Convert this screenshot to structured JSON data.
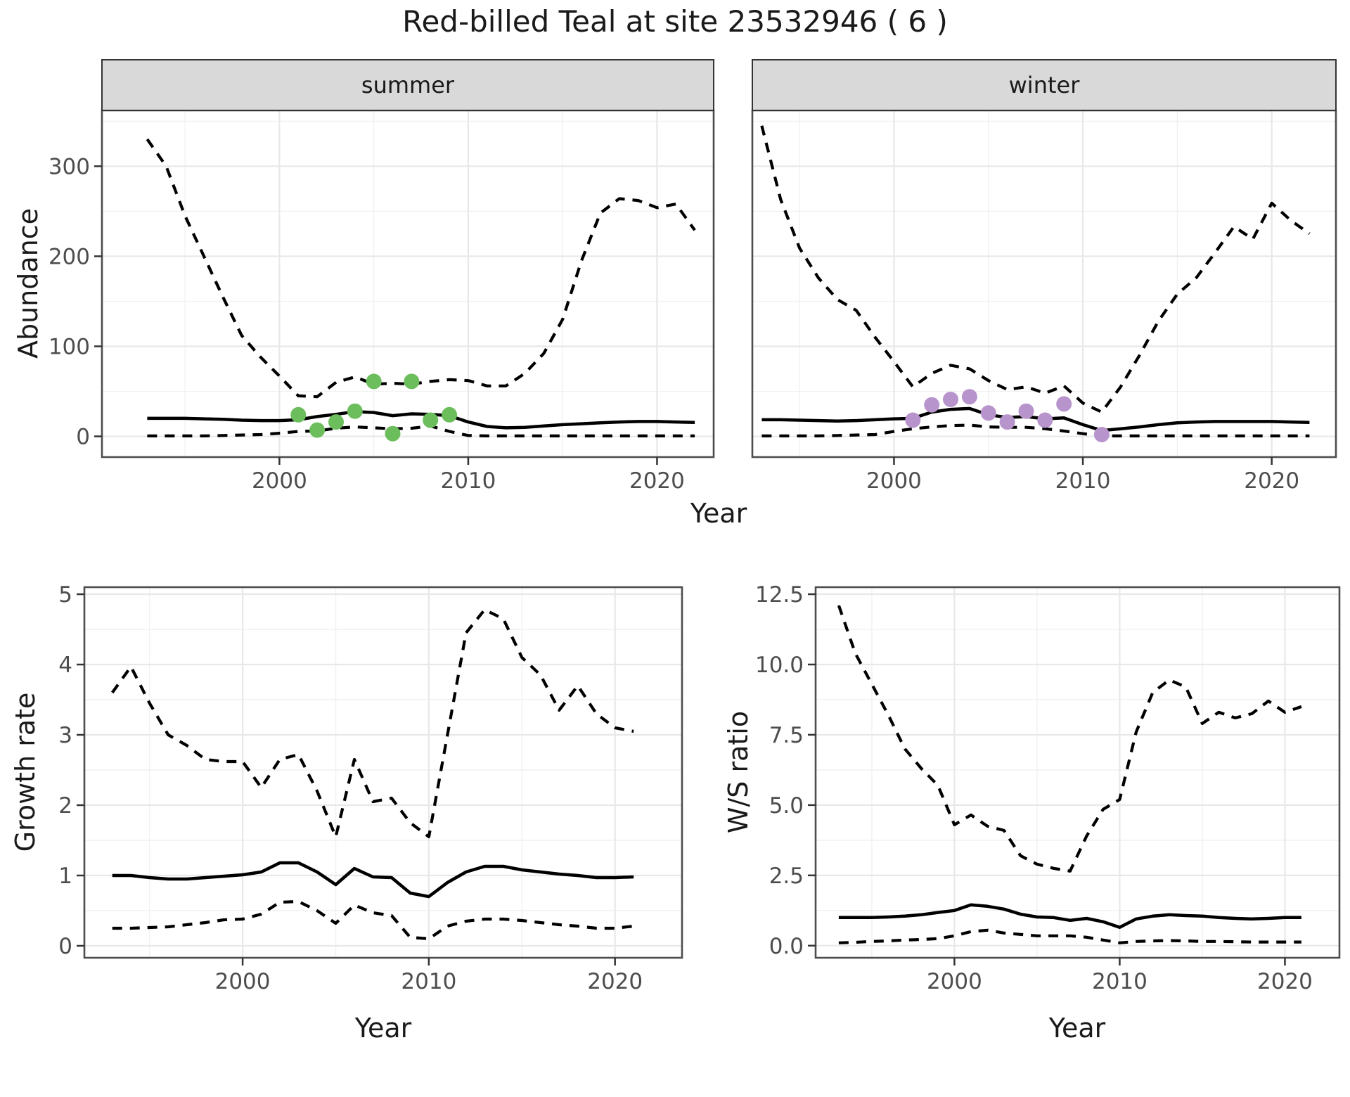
{
  "title": "Red-billed Teal at site 23532946 ( 6 )",
  "styles": {
    "line_color": "#000000",
    "summer_point_color": "#6CBE5C",
    "winter_point_color": "#B894CC",
    "strip_fill": "#D9D9D9",
    "strip_border": "#333333",
    "panel_border": "#4D4D4D",
    "grid_major": "#E8E8E8",
    "grid_minor": "#F1F1F1",
    "tick_color": "#333333",
    "tick_label_color": "#4D4D4D"
  },
  "chart_data": [
    {
      "id": "summer",
      "type": "line",
      "facet_label": "summer",
      "xlabel": "Year",
      "ylabel": "Abundance",
      "xlim": [
        1990.6,
        2023.0
      ],
      "ylim": [
        -23,
        362
      ],
      "x_major_ticks": [
        2000,
        2010,
        2020
      ],
      "x_tick_labels": [
        "2000",
        "2010",
        "2020"
      ],
      "x_minor_ticks": [
        1995,
        2005,
        2015
      ],
      "y_major_ticks": [
        0,
        100,
        200,
        300
      ],
      "y_tick_labels": [
        "0",
        "100",
        "200",
        "300"
      ],
      "y_minor_ticks": [
        50,
        150,
        250,
        350
      ],
      "years": [
        1993,
        1994,
        1995,
        1996,
        1997,
        1998,
        1999,
        2000,
        2001,
        2002,
        2003,
        2004,
        2005,
        2006,
        2007,
        2008,
        2009,
        2010,
        2011,
        2012,
        2013,
        2014,
        2015,
        2016,
        2017,
        2018,
        2019,
        2020,
        2021,
        2022
      ],
      "series": [
        {
          "name": "upper_95ci",
          "style": "dashed",
          "values": [
            330,
            300,
            245,
            200,
            155,
            112,
            88,
            67,
            45,
            44,
            60,
            66,
            58,
            59,
            58,
            61,
            63,
            62,
            56,
            56,
            70,
            92,
            130,
            195,
            248,
            264,
            262,
            254,
            258,
            229
          ]
        },
        {
          "name": "median",
          "style": "solid",
          "values": [
            20,
            20,
            20,
            19.5,
            19,
            18,
            17.5,
            17.5,
            18.5,
            22,
            24.5,
            27.5,
            26.5,
            23,
            25,
            24.5,
            23,
            16,
            11,
            9.5,
            10,
            11.5,
            13,
            14,
            15,
            16,
            16.5,
            16.5,
            16,
            15.5
          ]
        },
        {
          "name": "lower_95ci",
          "style": "dashed",
          "values": [
            0.5,
            0.5,
            0.5,
            0.5,
            1,
            1.5,
            2,
            3.5,
            5.5,
            6,
            9,
            10.5,
            9.5,
            8.5,
            9,
            11.5,
            5.5,
            1,
            0.5,
            0.5,
            0.5,
            0.5,
            0.5,
            0.5,
            0.5,
            0.5,
            0.5,
            0.5,
            0.5,
            0.5
          ]
        }
      ],
      "observations": {
        "name": "observed_counts",
        "color": "#6CBE5C",
        "points": [
          [
            2001,
            24
          ],
          [
            2002,
            7
          ],
          [
            2003,
            16
          ],
          [
            2004,
            28
          ],
          [
            2005,
            61
          ],
          [
            2006,
            3
          ],
          [
            2007,
            61
          ],
          [
            2008,
            18
          ],
          [
            2009,
            24
          ]
        ]
      }
    },
    {
      "id": "winter",
      "type": "line",
      "facet_label": "winter",
      "xlabel": "Year",
      "ylabel": "Abundance",
      "xlim": [
        1992.5,
        2023.4
      ],
      "ylim": [
        -23,
        362
      ],
      "x_major_ticks": [
        2000,
        2010,
        2020
      ],
      "x_tick_labels": [
        "2000",
        "2010",
        "2020"
      ],
      "x_minor_ticks": [
        1995,
        2005,
        2015
      ],
      "y_major_ticks": [
        0,
        100,
        200,
        300
      ],
      "y_tick_labels": [
        "0",
        "100",
        "200",
        "300"
      ],
      "y_minor_ticks": [
        50,
        150,
        250,
        350
      ],
      "years": [
        1993,
        1994,
        1995,
        1996,
        1997,
        1998,
        1999,
        2000,
        2001,
        2002,
        2003,
        2004,
        2005,
        2006,
        2007,
        2008,
        2009,
        2010,
        2011,
        2012,
        2013,
        2014,
        2015,
        2016,
        2017,
        2018,
        2019,
        2020,
        2021,
        2022
      ],
      "series": [
        {
          "name": "upper_95ci",
          "style": "dashed",
          "values": [
            345,
            263,
            209,
            176,
            152,
            140,
            110,
            83,
            55,
            70,
            79,
            75,
            62,
            52,
            55,
            48,
            56,
            37,
            27,
            55,
            90,
            128,
            158,
            176,
            204,
            233,
            219,
            259,
            240,
            225
          ]
        },
        {
          "name": "median",
          "style": "solid",
          "values": [
            18.5,
            18.5,
            18,
            17.5,
            17,
            17.5,
            18.5,
            19.5,
            20,
            27,
            30,
            31,
            24,
            21,
            22,
            19.5,
            20.5,
            13,
            6.5,
            8.5,
            10.5,
            13,
            15,
            16,
            16.5,
            16.5,
            16.5,
            16.5,
            16,
            15.5
          ]
        },
        {
          "name": "lower_95ci",
          "style": "dashed",
          "values": [
            0.5,
            0.5,
            0.5,
            0.5,
            1,
            1.5,
            2,
            5.5,
            8.5,
            10.5,
            12,
            12.5,
            10.5,
            10,
            10,
            8.5,
            6,
            3,
            0.5,
            0.5,
            0.5,
            0.5,
            0.5,
            0.5,
            0.5,
            0.5,
            0.5,
            0.5,
            0.5,
            0.5
          ]
        }
      ],
      "observations": {
        "name": "observed_counts",
        "color": "#B894CC",
        "points": [
          [
            2001,
            18
          ],
          [
            2002,
            35
          ],
          [
            2003,
            41
          ],
          [
            2004,
            44
          ],
          [
            2005,
            26
          ],
          [
            2006,
            16
          ],
          [
            2007,
            28
          ],
          [
            2008,
            18
          ],
          [
            2009,
            36
          ],
          [
            2011,
            2
          ]
        ]
      }
    },
    {
      "id": "growth_rate",
      "type": "line",
      "facet_label": "",
      "xlabel": "Year",
      "ylabel": "Growth rate",
      "xlim": [
        1991.5,
        2023.6
      ],
      "ylim": [
        -0.17,
        5.1
      ],
      "x_major_ticks": [
        2000,
        2010,
        2020
      ],
      "x_tick_labels": [
        "2000",
        "2010",
        "2020"
      ],
      "x_minor_ticks": [
        1995,
        2005,
        2015
      ],
      "y_major_ticks": [
        0,
        1,
        2,
        3,
        4,
        5
      ],
      "y_tick_labels": [
        "0",
        "1",
        "2",
        "3",
        "4",
        "5"
      ],
      "y_minor_ticks": [
        0.5,
        1.5,
        2.5,
        3.5,
        4.5
      ],
      "years": [
        1993,
        1994,
        1995,
        1996,
        1997,
        1998,
        1999,
        2000,
        2001,
        2002,
        2003,
        2004,
        2005,
        2006,
        2007,
        2008,
        2009,
        2010,
        2011,
        2012,
        2013,
        2014,
        2015,
        2016,
        2017,
        2018,
        2019,
        2020,
        2021
      ],
      "series": [
        {
          "name": "upper_95ci",
          "style": "dashed",
          "values": [
            3.6,
            3.97,
            3.45,
            3.0,
            2.85,
            2.65,
            2.62,
            2.62,
            2.25,
            2.65,
            2.72,
            2.2,
            1.55,
            2.65,
            2.05,
            2.1,
            1.75,
            1.55,
            3.0,
            4.45,
            4.78,
            4.65,
            4.1,
            3.85,
            3.35,
            3.7,
            3.3,
            3.1,
            3.05
          ]
        },
        {
          "name": "median",
          "style": "solid",
          "values": [
            1.0,
            1.0,
            0.97,
            0.95,
            0.95,
            0.97,
            0.99,
            1.01,
            1.05,
            1.18,
            1.18,
            1.05,
            0.87,
            1.1,
            0.98,
            0.97,
            0.75,
            0.7,
            0.9,
            1.05,
            1.13,
            1.13,
            1.08,
            1.05,
            1.02,
            1.0,
            0.97,
            0.97,
            0.98
          ]
        },
        {
          "name": "lower_95ci",
          "style": "dashed",
          "values": [
            0.25,
            0.25,
            0.26,
            0.27,
            0.3,
            0.33,
            0.37,
            0.38,
            0.45,
            0.62,
            0.63,
            0.5,
            0.32,
            0.58,
            0.47,
            0.43,
            0.12,
            0.1,
            0.28,
            0.35,
            0.38,
            0.38,
            0.36,
            0.33,
            0.3,
            0.28,
            0.25,
            0.25,
            0.28
          ]
        }
      ]
    },
    {
      "id": "ws_ratio",
      "type": "line",
      "facet_label": "",
      "xlabel": "Year",
      "ylabel": "W/S ratio",
      "xlim": [
        1991.6,
        2023.3
      ],
      "ylim": [
        -0.43,
        12.75
      ],
      "x_major_ticks": [
        2000,
        2010,
        2020
      ],
      "x_tick_labels": [
        "2000",
        "2010",
        "2020"
      ],
      "x_minor_ticks": [
        1995,
        2005,
        2015
      ],
      "y_major_ticks": [
        0,
        2.5,
        5,
        7.5,
        10,
        12.5
      ],
      "y_tick_labels": [
        "0.0",
        "2.5",
        "5.0",
        "7.5",
        "10.0",
        "12.5"
      ],
      "y_minor_ticks": [
        1.25,
        3.75,
        6.25,
        8.75,
        11.25
      ],
      "years": [
        1993,
        1994,
        1995,
        1996,
        1997,
        1998,
        1999,
        2000,
        2001,
        2002,
        2003,
        2004,
        2005,
        2006,
        2007,
        2008,
        2009,
        2010,
        2011,
        2012,
        2013,
        2014,
        2015,
        2016,
        2017,
        2018,
        2019,
        2020,
        2021
      ],
      "series": [
        {
          "name": "upper_95ci",
          "style": "dashed",
          "values": [
            12.1,
            10.4,
            9.3,
            8.2,
            7.0,
            6.3,
            5.7,
            4.3,
            4.65,
            4.25,
            4.1,
            3.2,
            2.9,
            2.75,
            2.65,
            3.9,
            4.85,
            5.2,
            7.6,
            9.0,
            9.45,
            9.2,
            7.9,
            8.3,
            8.1,
            8.25,
            8.7,
            8.3,
            8.5
          ]
        },
        {
          "name": "median",
          "style": "solid",
          "values": [
            1.0,
            1.0,
            1.0,
            1.02,
            1.05,
            1.1,
            1.18,
            1.25,
            1.45,
            1.4,
            1.3,
            1.12,
            1.02,
            1.0,
            0.9,
            0.97,
            0.85,
            0.65,
            0.95,
            1.05,
            1.1,
            1.07,
            1.05,
            1.0,
            0.97,
            0.95,
            0.97,
            1.0,
            1.0
          ]
        },
        {
          "name": "lower_95ci",
          "style": "dashed",
          "values": [
            0.1,
            0.12,
            0.15,
            0.17,
            0.2,
            0.22,
            0.25,
            0.35,
            0.5,
            0.55,
            0.45,
            0.4,
            0.35,
            0.35,
            0.35,
            0.3,
            0.2,
            0.1,
            0.15,
            0.17,
            0.18,
            0.17,
            0.15,
            0.15,
            0.14,
            0.13,
            0.13,
            0.13,
            0.13
          ]
        }
      ]
    }
  ]
}
